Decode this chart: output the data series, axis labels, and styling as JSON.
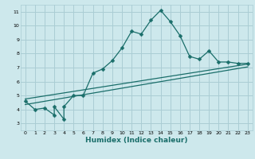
{
  "xlabel": "Humidex (Indice chaleur)",
  "bg_color": "#cde8ec",
  "grid_color": "#aacdd4",
  "line_color": "#1a6e6a",
  "xlim": [
    -0.5,
    23.5
  ],
  "ylim": [
    2.5,
    11.5
  ],
  "xticks": [
    0,
    1,
    2,
    3,
    4,
    5,
    6,
    7,
    8,
    9,
    10,
    11,
    12,
    13,
    14,
    15,
    16,
    17,
    18,
    19,
    20,
    21,
    22,
    23
  ],
  "yticks": [
    3,
    4,
    5,
    6,
    7,
    8,
    9,
    10,
    11
  ],
  "line1_x": [
    0,
    1,
    2,
    3,
    3,
    4,
    4,
    5,
    6,
    7,
    8,
    9,
    10,
    11,
    12,
    13,
    14,
    15,
    16,
    17,
    18,
    19,
    20,
    21,
    22,
    23
  ],
  "line1_y": [
    4.6,
    4.0,
    4.1,
    3.6,
    4.2,
    3.3,
    4.2,
    5.0,
    5.0,
    6.6,
    6.9,
    7.5,
    8.4,
    9.6,
    9.4,
    10.4,
    11.1,
    10.3,
    9.3,
    7.8,
    7.6,
    8.2,
    7.4,
    7.4,
    7.3,
    7.3
  ],
  "line2_x": [
    0,
    23
  ],
  "line2_y": [
    4.35,
    7.05
  ],
  "line3_x": [
    0,
    23
  ],
  "line3_y": [
    4.75,
    7.25
  ],
  "markersize": 2.5,
  "linewidth": 0.9,
  "tick_fontsize": 4.5,
  "xlabel_fontsize": 6.5
}
